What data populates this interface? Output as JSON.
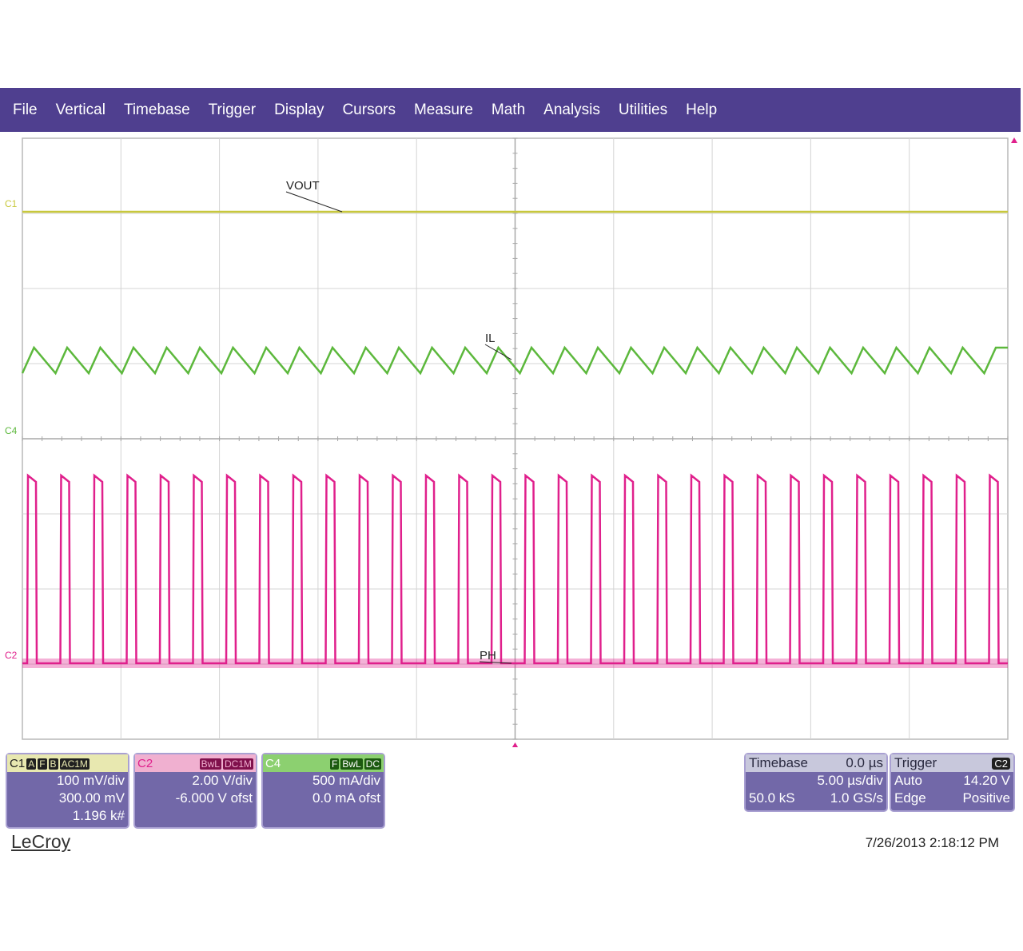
{
  "menu": [
    "File",
    "Vertical",
    "Timebase",
    "Trigger",
    "Display",
    "Cursors",
    "Measure",
    "Math",
    "Analysis",
    "Utilities",
    "Help"
  ],
  "traces": {
    "vout": {
      "label": "VOUT",
      "marker": "C1",
      "color": "#c8c83c"
    },
    "il": {
      "label": "IL",
      "marker": "C4",
      "color": "#5cb83c"
    },
    "ph": {
      "label": "PH",
      "marker": "C2",
      "color": "#e0208c"
    }
  },
  "channels": {
    "c1": {
      "name": "C1",
      "tags": [
        "A",
        "F",
        "B",
        "AC1M"
      ],
      "volts_div": "100 mV/div",
      "offset": "300.00 mV",
      "extra": "1.196 k#",
      "color": "#b8b820"
    },
    "c2": {
      "name": "C2",
      "tags": [
        "BwL",
        "DC1M"
      ],
      "volts_div": "2.00 V/div",
      "offset": "-6.000 V ofst",
      "color": "#e0208c"
    },
    "c4": {
      "name": "C4",
      "tags": [
        "F",
        "BwL",
        "DC"
      ],
      "volts_div": "500 mA/div",
      "offset": "0.0 mA ofst",
      "color": "#4ab02c"
    }
  },
  "timebase": {
    "title": "Timebase",
    "delay": "0.0 µs",
    "time_div": "5.00 µs/div",
    "samples": "50.0 kS",
    "rate": "1.0 GS/s"
  },
  "trigger": {
    "title": "Trigger",
    "source": "C2",
    "mode": "Auto",
    "level": "14.20 V",
    "type": "Edge",
    "slope": "Positive"
  },
  "brand": "LeCroy",
  "timestamp": "7/26/2013 2:18:12 PM"
}
